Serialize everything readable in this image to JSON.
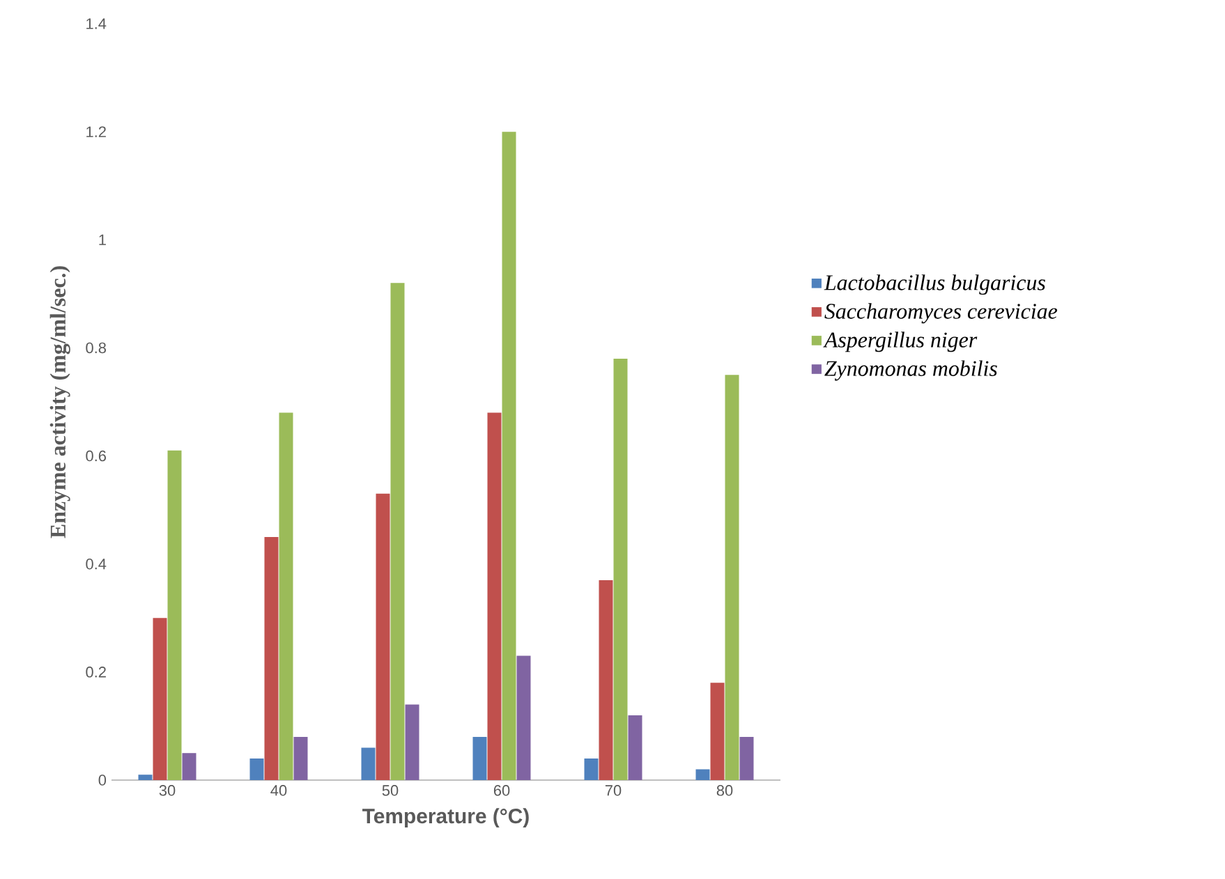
{
  "chart_data": {
    "type": "bar",
    "xlabel": "Temperature  (°C)",
    "ylabel": "Enzyme activity (mg/ml/sec.)",
    "categories": [
      "30",
      "40",
      "50",
      "60",
      "70",
      "80"
    ],
    "series": [
      {
        "name": "Lactobacillus bulgaricus",
        "color": "#4f81bd",
        "values": [
          0.01,
          0.04,
          0.06,
          0.08,
          0.04,
          0.02
        ]
      },
      {
        "name": "Saccharomyces cereviciae",
        "color": "#c0504d",
        "values": [
          0.3,
          0.45,
          0.53,
          0.68,
          0.37,
          0.18
        ]
      },
      {
        "name": "Aspergillus niger",
        "color": "#9bbb59",
        "values": [
          0.61,
          0.68,
          0.92,
          1.2,
          0.78,
          0.75
        ]
      },
      {
        "name": "Zynomonas mobilis",
        "color": "#8064a2",
        "values": [
          0.05,
          0.08,
          0.14,
          0.23,
          0.12,
          0.08
        ]
      }
    ],
    "ylim": [
      0,
      1.4
    ],
    "yticks": [
      0,
      0.2,
      0.4,
      0.6,
      0.8,
      1,
      1.2,
      1.4
    ],
    "grid": false,
    "legend": "right"
  }
}
